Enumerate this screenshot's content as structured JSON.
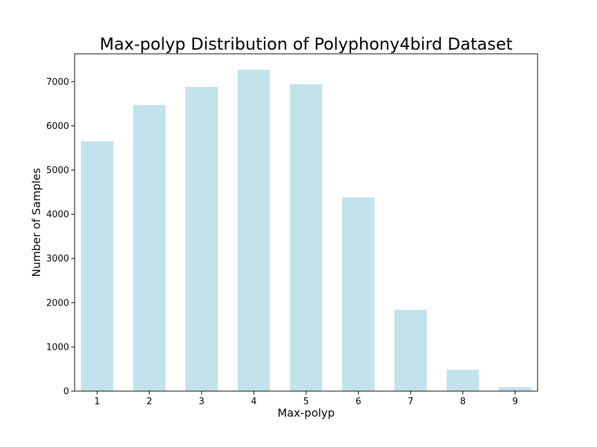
{
  "chart_data": {
    "type": "bar",
    "title": "Max-polyp Distribution of Polyphony4bird Dataset",
    "xlabel": "Max-polyp",
    "ylabel": "Number of Samples",
    "categories": [
      "1",
      "2",
      "3",
      "4",
      "5",
      "6",
      "7",
      "8",
      "9"
    ],
    "values": [
      5650,
      6470,
      6880,
      7270,
      6940,
      4380,
      1840,
      480,
      90
    ],
    "ylim": [
      0,
      7630
    ],
    "yticks": [
      0,
      1000,
      2000,
      3000,
      4000,
      5000,
      6000,
      7000
    ],
    "grid": false,
    "legend": "none",
    "bar_color": "#add8e6",
    "bar_opacity": 0.75
  }
}
